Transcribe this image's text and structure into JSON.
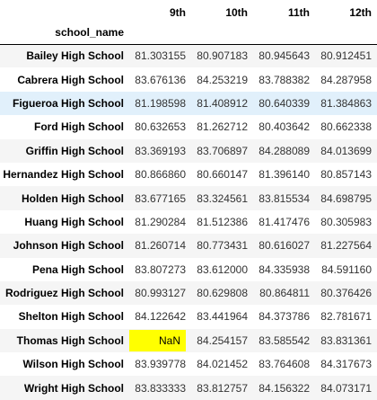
{
  "table": {
    "index_name": "school_name",
    "columns": [
      "9th",
      "10th",
      "11th",
      "12th"
    ],
    "rows": [
      {
        "school": "Bailey High School",
        "values": [
          "81.303155",
          "80.907183",
          "80.945643",
          "80.912451"
        ]
      },
      {
        "school": "Cabrera High School",
        "values": [
          "83.676136",
          "84.253219",
          "83.788382",
          "84.287958"
        ]
      },
      {
        "school": "Figueroa High School",
        "values": [
          "81.198598",
          "81.408912",
          "80.640339",
          "81.384863"
        ]
      },
      {
        "school": "Ford High School",
        "values": [
          "80.632653",
          "81.262712",
          "80.403642",
          "80.662338"
        ]
      },
      {
        "school": "Griffin High School",
        "values": [
          "83.369193",
          "83.706897",
          "84.288089",
          "84.013699"
        ]
      },
      {
        "school": "Hernandez High School",
        "values": [
          "80.866860",
          "80.660147",
          "81.396140",
          "80.857143"
        ]
      },
      {
        "school": "Holden High School",
        "values": [
          "83.677165",
          "83.324561",
          "83.815534",
          "84.698795"
        ]
      },
      {
        "school": "Huang High School",
        "values": [
          "81.290284",
          "81.512386",
          "81.417476",
          "80.305983"
        ]
      },
      {
        "school": "Johnson High School",
        "values": [
          "81.260714",
          "80.773431",
          "80.616027",
          "81.227564"
        ]
      },
      {
        "school": "Pena High School",
        "values": [
          "83.807273",
          "83.612000",
          "84.335938",
          "84.591160"
        ]
      },
      {
        "school": "Rodriguez High School",
        "values": [
          "80.993127",
          "80.629808",
          "80.864811",
          "80.376426"
        ]
      },
      {
        "school": "Shelton High School",
        "values": [
          "84.122642",
          "83.441964",
          "84.373786",
          "82.781671"
        ]
      },
      {
        "school": "Thomas High School",
        "values": [
          "NaN",
          "84.254157",
          "83.585542",
          "83.831361"
        ]
      },
      {
        "school": "Wilson High School",
        "values": [
          "83.939778",
          "84.021452",
          "83.764608",
          "84.317673"
        ]
      },
      {
        "school": "Wright High School",
        "values": [
          "83.833333",
          "83.812757",
          "84.156322",
          "84.073171"
        ]
      }
    ],
    "hovered_row": "Figueroa High School",
    "highlight_color": "#ffff00",
    "hover_color": "#e1f0fb"
  }
}
